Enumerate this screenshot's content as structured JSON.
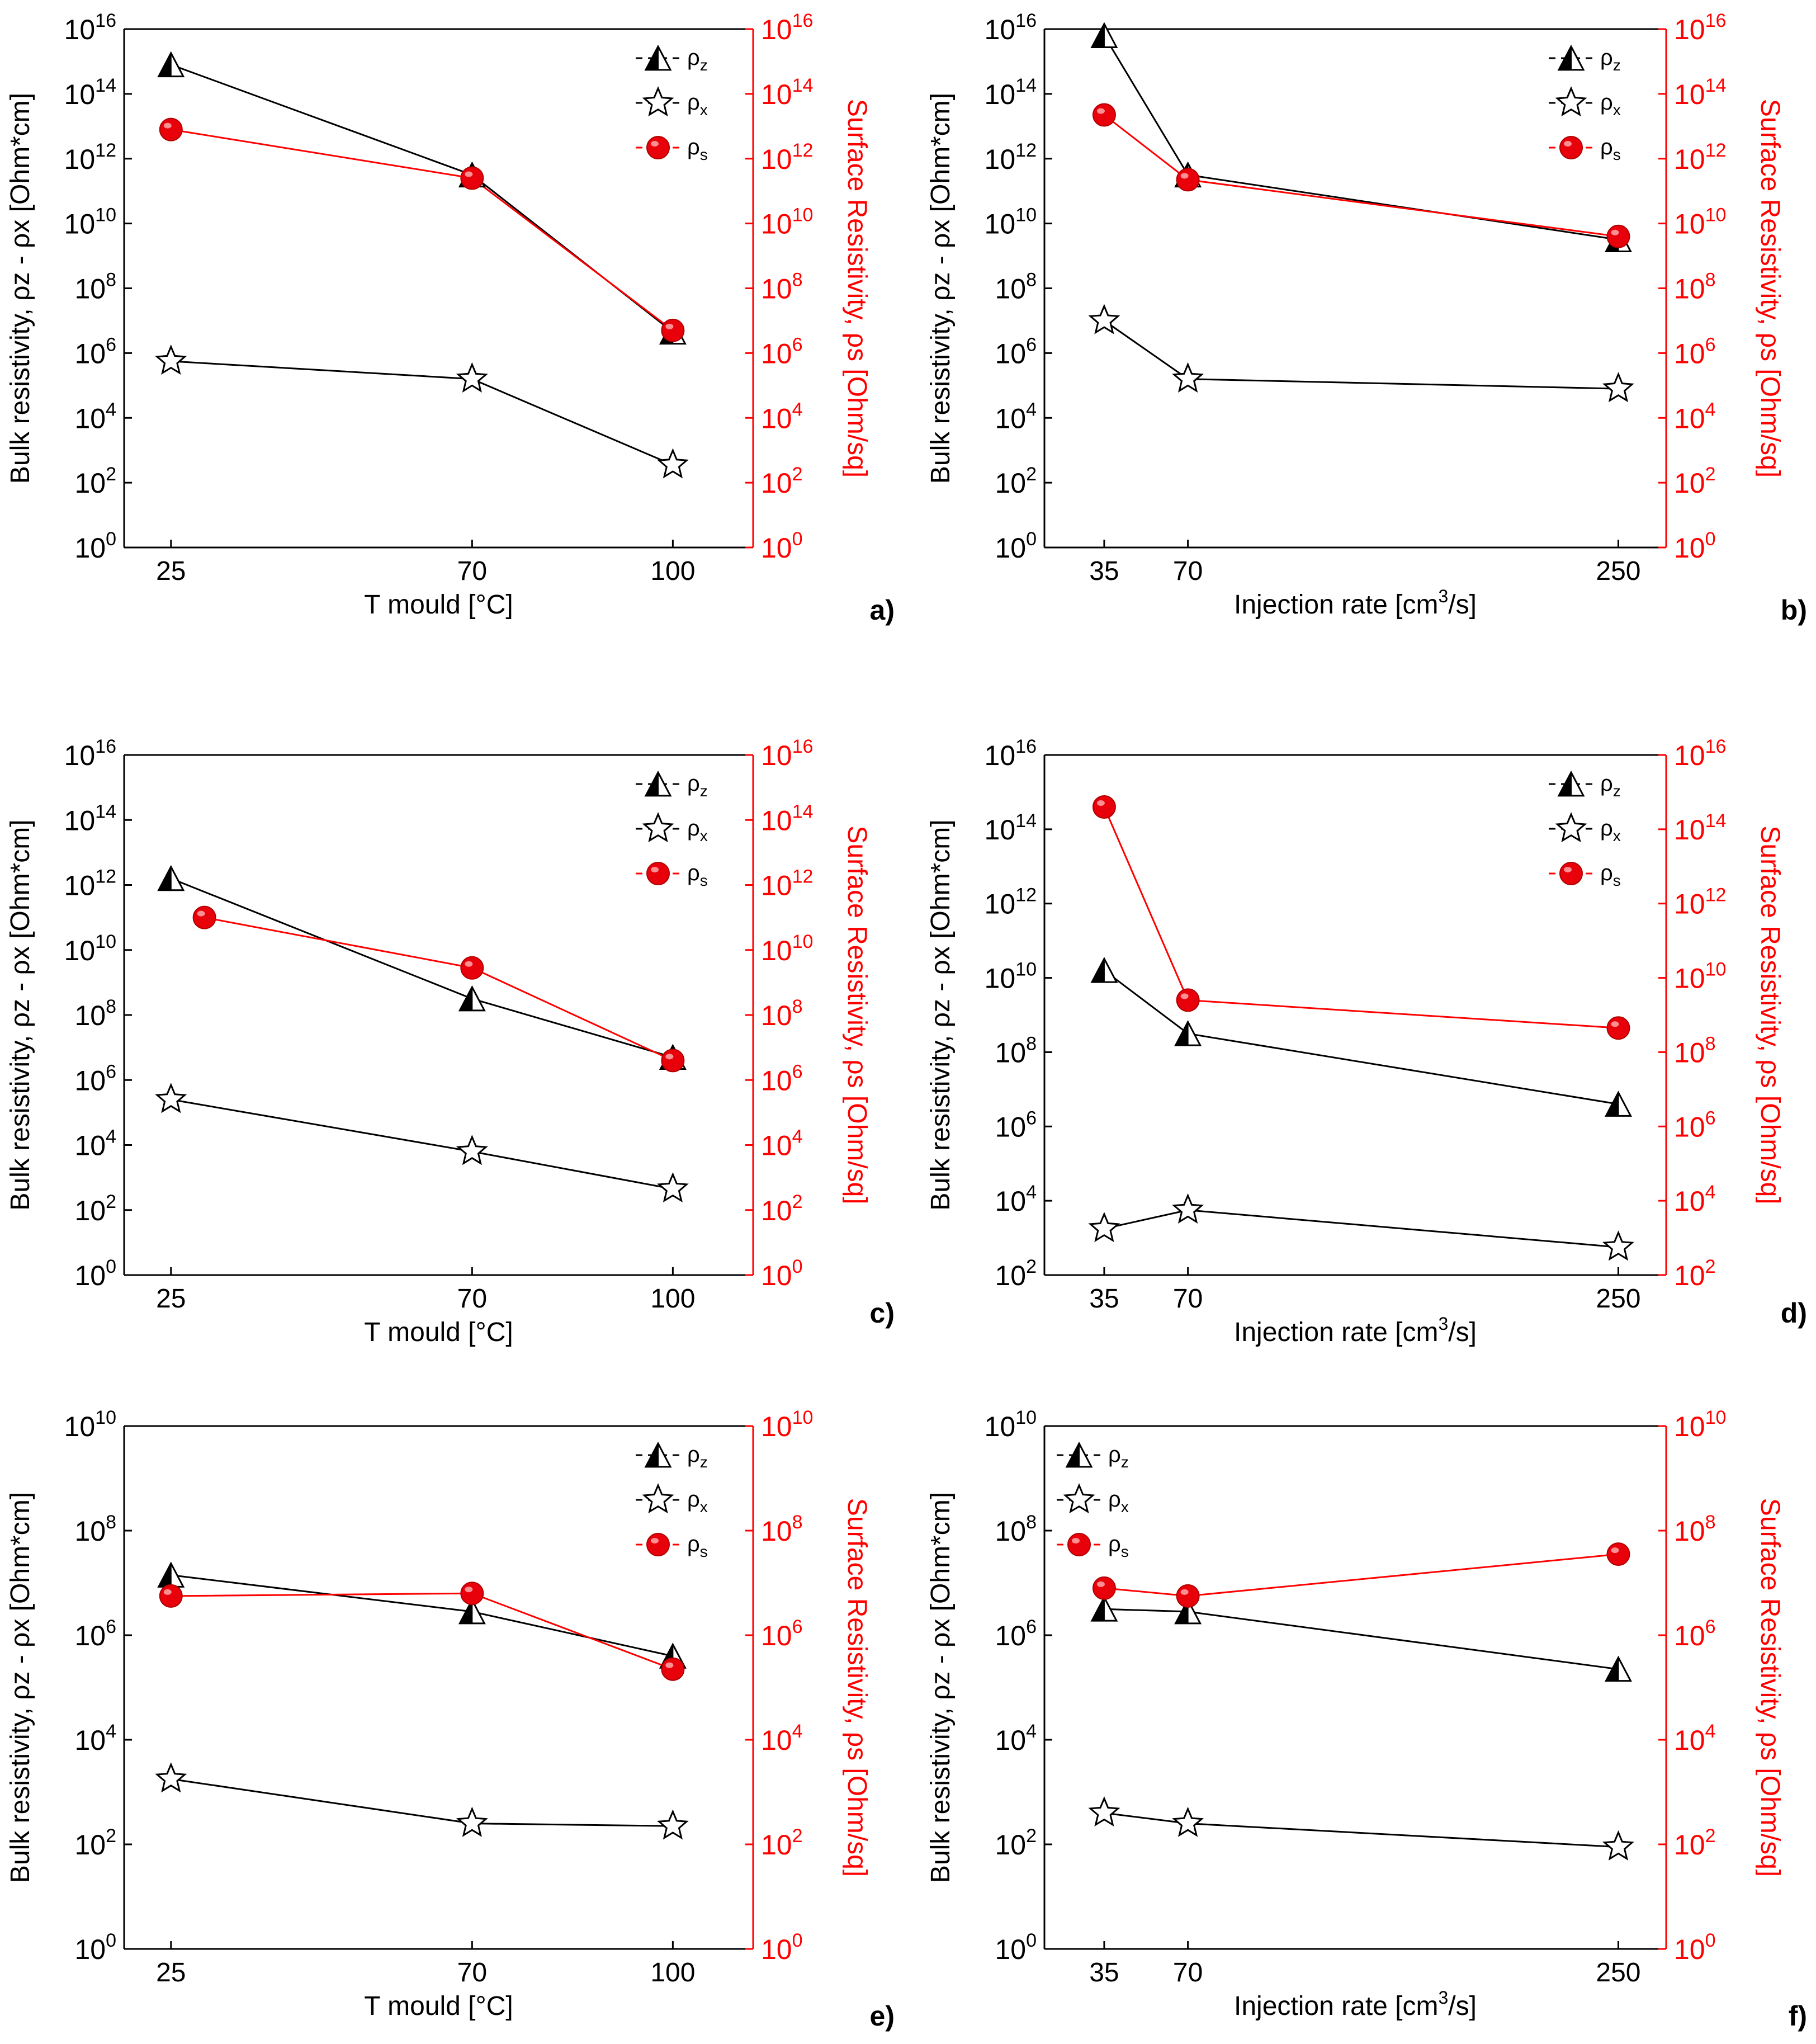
{
  "colors": {
    "black": "#000000",
    "red": "#ff0000",
    "marker_red": "#e8000b",
    "highlight": "#ffb3b3"
  },
  "chart_data": [
    {
      "panel_label": "a)",
      "type": "line",
      "x_scale": "linear",
      "xlabel": "T mould [°C]",
      "xlim": [
        18,
        112
      ],
      "x_ticks": [
        25,
        70,
        100
      ],
      "x_tick_labels": [
        "25",
        "70",
        "100"
      ],
      "ylabel_left": "Bulk resistivity, ρz - ρx [Ohm*cm]",
      "ylabel_right": "Surface Resistivity, ρs [Ohm/sq]",
      "y_exp_range": [
        0,
        16
      ],
      "y_exp_ticks": [
        0,
        2,
        4,
        6,
        8,
        10,
        12,
        14,
        16
      ],
      "legend_position": "top-right",
      "series": [
        {
          "name": "ρz",
          "axis": "left",
          "marker": "triangle",
          "x": [
            25,
            70,
            100
          ],
          "log10_y": [
            14.9,
            11.5,
            6.65
          ]
        },
        {
          "name": "ρx",
          "axis": "left",
          "marker": "star",
          "x": [
            25,
            70,
            100
          ],
          "log10_y": [
            5.75,
            5.2,
            2.55
          ]
        },
        {
          "name": "ρs",
          "axis": "right",
          "marker": "sphere",
          "x": [
            25,
            70,
            100
          ],
          "log10_y": [
            12.9,
            11.4,
            6.7
          ]
        }
      ]
    },
    {
      "panel_label": "b)",
      "type": "line",
      "x_scale": "linear",
      "xlabel": "Injection rate [cm³/s]",
      "xlim": [
        10,
        270
      ],
      "x_ticks": [
        35,
        70,
        250
      ],
      "x_tick_labels": [
        "35",
        "70",
        "250"
      ],
      "ylabel_left": "Bulk resistivity, ρz - ρx [Ohm*cm]",
      "ylabel_right": "Surface Resistivity, ρs [Ohm/sq]",
      "y_exp_range": [
        0,
        16
      ],
      "y_exp_ticks": [
        0,
        2,
        4,
        6,
        8,
        10,
        12,
        14,
        16
      ],
      "legend_position": "top-right",
      "series": [
        {
          "name": "ρz",
          "axis": "left",
          "marker": "triangle",
          "x": [
            35,
            70,
            250
          ],
          "log10_y": [
            15.8,
            11.5,
            9.5
          ]
        },
        {
          "name": "ρx",
          "axis": "left",
          "marker": "star",
          "x": [
            35,
            70,
            250
          ],
          "log10_y": [
            7.0,
            5.2,
            4.9
          ]
        },
        {
          "name": "ρs",
          "axis": "right",
          "marker": "sphere",
          "x": [
            35,
            70,
            250
          ],
          "log10_y": [
            13.35,
            11.35,
            9.6
          ]
        }
      ]
    },
    {
      "panel_label": "c)",
      "type": "line",
      "x_scale": "linear",
      "xlabel": "T mould [°C]",
      "xlim": [
        18,
        112
      ],
      "x_ticks": [
        25,
        70,
        100
      ],
      "x_tick_labels": [
        "25",
        "70",
        "100"
      ],
      "ylabel_left": "Bulk resistivity, ρz - ρx [Ohm*cm]",
      "ylabel_right": "Surface Resistivity, ρs [Ohm/sq]",
      "y_exp_range": [
        0,
        16
      ],
      "y_exp_ticks": [
        0,
        2,
        4,
        6,
        8,
        10,
        12,
        14,
        16
      ],
      "legend_position": "top-right",
      "series": [
        {
          "name": "ρz",
          "axis": "left",
          "marker": "triangle",
          "x": [
            25,
            70,
            100
          ],
          "log10_y": [
            12.2,
            8.5,
            6.7
          ]
        },
        {
          "name": "ρx",
          "axis": "left",
          "marker": "star",
          "x": [
            25,
            70,
            100
          ],
          "log10_y": [
            5.4,
            3.8,
            2.65
          ]
        },
        {
          "name": "ρs",
          "axis": "right",
          "marker": "sphere",
          "x": [
            30,
            70,
            100
          ],
          "log10_y": [
            11.0,
            9.45,
            6.6
          ]
        }
      ]
    },
    {
      "panel_label": "d)",
      "type": "line",
      "x_scale": "linear",
      "xlabel": "Injection rate [cm³/s]",
      "xlim": [
        10,
        270
      ],
      "x_ticks": [
        35,
        70,
        250
      ],
      "x_tick_labels": [
        "35",
        "70",
        "250"
      ],
      "ylabel_left": "Bulk resistivity, ρz - ρx [Ohm*cm]",
      "ylabel_right": "Surface Resistivity, ρs [Ohm/sq]",
      "y_exp_range": [
        2,
        16
      ],
      "y_exp_ticks": [
        2,
        4,
        6,
        8,
        10,
        12,
        14,
        16
      ],
      "legend_position": "top-right",
      "series": [
        {
          "name": "ρz",
          "axis": "left",
          "marker": "triangle",
          "x": [
            35,
            70,
            250
          ],
          "log10_y": [
            10.2,
            8.5,
            6.6
          ]
        },
        {
          "name": "ρx",
          "axis": "left",
          "marker": "star",
          "x": [
            35,
            70,
            250
          ],
          "log10_y": [
            3.25,
            3.75,
            2.75
          ]
        },
        {
          "name": "ρs",
          "axis": "right",
          "marker": "sphere",
          "x": [
            35,
            70,
            250
          ],
          "log10_y": [
            14.6,
            9.4,
            8.65
          ]
        }
      ]
    },
    {
      "panel_label": "e)",
      "type": "line",
      "x_scale": "linear",
      "xlabel": "T mould [°C]",
      "xlim": [
        18,
        112
      ],
      "x_ticks": [
        25,
        70,
        100
      ],
      "x_tick_labels": [
        "25",
        "70",
        "100"
      ],
      "ylabel_left": "Bulk resistivity, ρz - ρx [Ohm*cm]",
      "ylabel_right": "Surface Resistivity, ρs [Ohm/sq]",
      "y_exp_range": [
        0,
        10
      ],
      "y_exp_ticks": [
        0,
        2,
        4,
        6,
        8,
        10
      ],
      "legend_position": "top-right",
      "series": [
        {
          "name": "ρz",
          "axis": "left",
          "marker": "triangle",
          "x": [
            25,
            70,
            100
          ],
          "log10_y": [
            7.15,
            6.45,
            5.6
          ]
        },
        {
          "name": "ρx",
          "axis": "left",
          "marker": "star",
          "x": [
            25,
            70,
            100
          ],
          "log10_y": [
            3.25,
            2.4,
            2.35
          ]
        },
        {
          "name": "ρs",
          "axis": "right",
          "marker": "sphere",
          "x": [
            25,
            70,
            100
          ],
          "log10_y": [
            6.75,
            6.8,
            5.35
          ]
        }
      ]
    },
    {
      "panel_label": "f)",
      "type": "line",
      "x_scale": "linear",
      "xlabel": "Injection rate [cm³/s]",
      "xlim": [
        10,
        270
      ],
      "x_ticks": [
        35,
        70,
        250
      ],
      "x_tick_labels": [
        "35",
        "70",
        "250"
      ],
      "ylabel_left": "Bulk resistivity, ρz - ρx [Ohm*cm]",
      "ylabel_right": "Surface Resistivity, ρs [Ohm/sq]",
      "y_exp_range": [
        0,
        10
      ],
      "y_exp_ticks": [
        0,
        2,
        4,
        6,
        8,
        10
      ],
      "legend_position": "top-left",
      "series": [
        {
          "name": "ρz",
          "axis": "left",
          "marker": "triangle",
          "x": [
            35,
            70,
            250
          ],
          "log10_y": [
            6.5,
            6.45,
            5.35
          ]
        },
        {
          "name": "ρx",
          "axis": "left",
          "marker": "star",
          "x": [
            35,
            70,
            250
          ],
          "log10_y": [
            2.6,
            2.4,
            1.95
          ]
        },
        {
          "name": "ρs",
          "axis": "right",
          "marker": "sphere",
          "x": [
            35,
            70,
            250
          ],
          "log10_y": [
            6.9,
            6.75,
            7.55
          ]
        }
      ]
    }
  ]
}
